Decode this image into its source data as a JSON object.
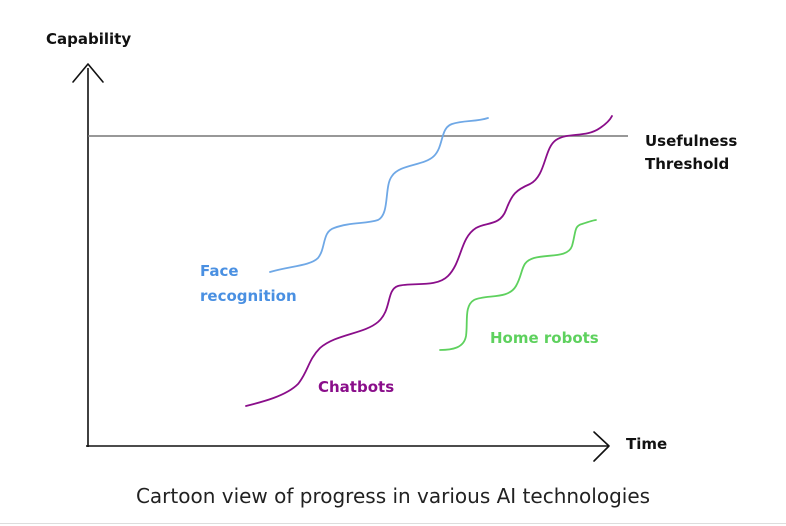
{
  "axes": {
    "y_label": "Capability",
    "x_label": "Time"
  },
  "threshold": {
    "label_line1": "Usefulness",
    "label_line2": "Threshold"
  },
  "series": [
    {
      "name_line1": "Face",
      "name_line2": "recognition",
      "color": "#6fa8e6",
      "label_color": "#4a90e2"
    },
    {
      "name_line1": "Chatbots",
      "name_line2": "",
      "color": "#8a0e8a",
      "label_color": "#8a0e8a"
    },
    {
      "name_line1": "Home robots",
      "name_line2": "",
      "color": "#5ed15e",
      "label_color": "#5ed15e"
    }
  ],
  "caption": "Cartoon view of progress in various AI technologies",
  "colors": {
    "axis": "#111111",
    "threshold_line": "#777777"
  }
}
